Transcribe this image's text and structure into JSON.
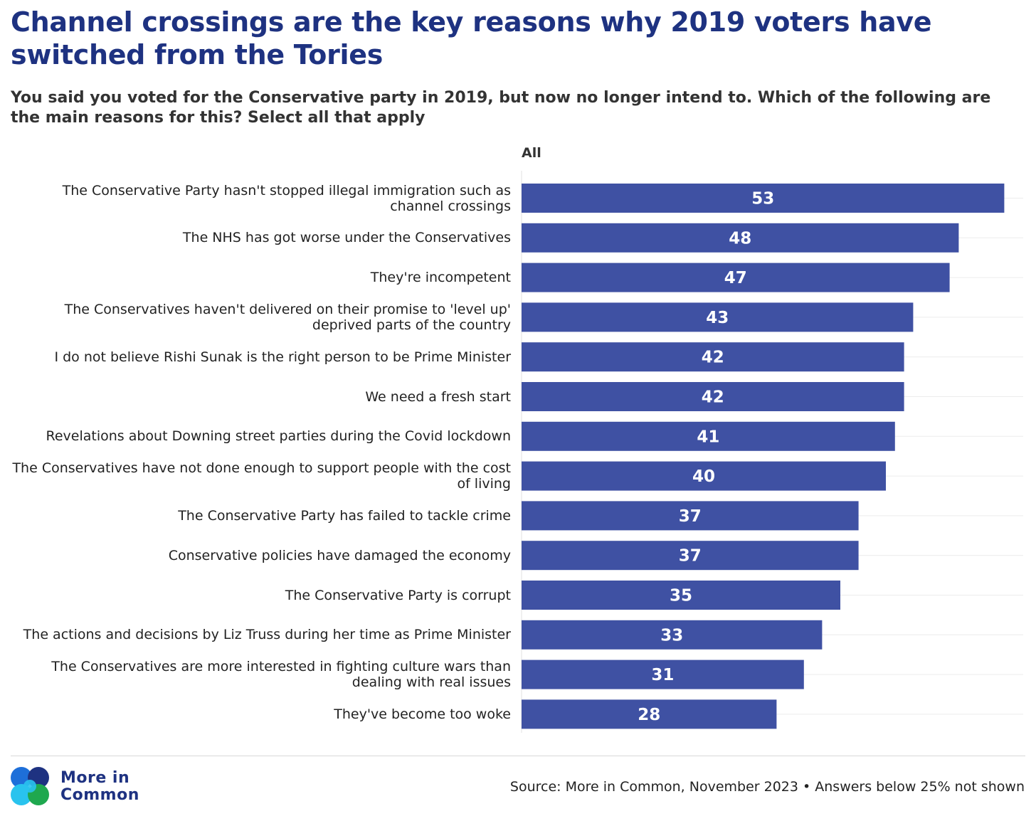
{
  "title": "Channel crossings are the key reasons why 2019 voters have switched from the Tories",
  "subtitle": "You said you voted for the Conservative party in 2019, but now no longer intend to. Which of the following are the main reasons for this? Select all that apply",
  "chart_data": {
    "type": "bar",
    "orientation": "horizontal",
    "column_header": "All",
    "xlim": [
      0,
      55
    ],
    "grid": true,
    "categories": [
      "The Conservative Party hasn't stopped illegal immigration such as channel crossings",
      "The NHS has got worse under the Conservatives",
      "They're incompetent",
      "The Conservatives haven't delivered on their promise to 'level up' deprived parts of the country",
      "I do not believe Rishi Sunak is the right person to be Prime Minister",
      "We need a fresh start",
      "Revelations about Downing street parties during the Covid lockdown",
      "The Conservatives have not done enough to support people with the cost of living",
      "The Conservative Party has failed to tackle crime",
      "Conservative policies have damaged the economy",
      "The Conservative Party is corrupt",
      "The actions and decisions by Liz Truss during her time as Prime Minister",
      "The Conservatives are more interested in fighting culture wars than dealing with real issues",
      "They've become too woke"
    ],
    "values": [
      53,
      48,
      47,
      43,
      42,
      42,
      41,
      40,
      37,
      37,
      35,
      33,
      31,
      28
    ],
    "bar_color": "#3f51a3",
    "label_color": "#ffffff"
  },
  "footer": {
    "logo_text_line1": "More in",
    "logo_text_line2": "Common",
    "source": "Source: More in Common, November 2023 • Answers below 25% not shown"
  },
  "colors": {
    "title": "#1e3281",
    "logo_blue": "#1e6fd9",
    "logo_cyan": "#29c3ee",
    "logo_green": "#1fa84f",
    "logo_navy": "#1e3281"
  }
}
